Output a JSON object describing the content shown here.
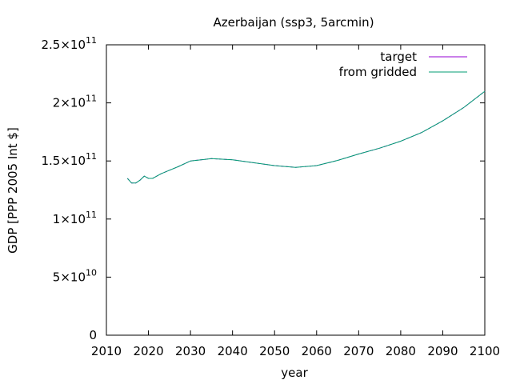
{
  "chart_data": {
    "type": "line",
    "title": "Azerbaijan (ssp3, 5arcmin)",
    "xlabel": "year",
    "ylabel": "GDP [PPP 2005 Int $]",
    "xlim": [
      2010,
      2100
    ],
    "ylim": [
      0,
      250000000000
    ],
    "x_ticks": [
      "2010",
      "2020",
      "2030",
      "2040",
      "2050",
      "2060",
      "2070",
      "2080",
      "2090",
      "2100"
    ],
    "y_ticks": [
      {
        "value": 0,
        "mantissa": "0",
        "exponent": ""
      },
      {
        "value": 50000000000,
        "mantissa": "5×10",
        "exponent": "10"
      },
      {
        "value": 100000000000,
        "mantissa": "1×10",
        "exponent": "11"
      },
      {
        "value": 150000000000,
        "mantissa": "1.5×10",
        "exponent": "11"
      },
      {
        "value": 200000000000,
        "mantissa": "2×10",
        "exponent": "11"
      },
      {
        "value": 250000000000,
        "mantissa": "2.5×10",
        "exponent": "11"
      }
    ],
    "grid": false,
    "legend_position": "top-right",
    "x": [
      2015,
      2016,
      2017,
      2018,
      2019,
      2020,
      2021,
      2022,
      2023,
      2025,
      2027,
      2030,
      2035,
      2040,
      2045,
      2050,
      2055,
      2060,
      2065,
      2070,
      2075,
      2080,
      2085,
      2090,
      2095,
      2100
    ],
    "series": [
      {
        "name": "target",
        "color": "#9400d3",
        "values": [
          135000000000,
          131000000000,
          131000000000,
          133500000000,
          137000000000,
          135000000000,
          135000000000,
          137000000000,
          139000000000,
          142000000000,
          145000000000,
          150000000000,
          152000000000,
          151000000000,
          148500000000,
          146000000000,
          144500000000,
          146000000000,
          150500000000,
          156000000000,
          161000000000,
          167000000000,
          174500000000,
          184500000000,
          196000000000,
          210000000000
        ]
      },
      {
        "name": "from gridded",
        "color": "#009e73",
        "values": [
          135000000000,
          131000000000,
          131000000000,
          133500000000,
          137000000000,
          135000000000,
          135000000000,
          137000000000,
          139000000000,
          142000000000,
          145000000000,
          150000000000,
          152000000000,
          151000000000,
          148500000000,
          146000000000,
          144500000000,
          146000000000,
          150500000000,
          156000000000,
          161000000000,
          167000000000,
          174500000000,
          184500000000,
          196000000000,
          210000000000
        ]
      }
    ]
  }
}
